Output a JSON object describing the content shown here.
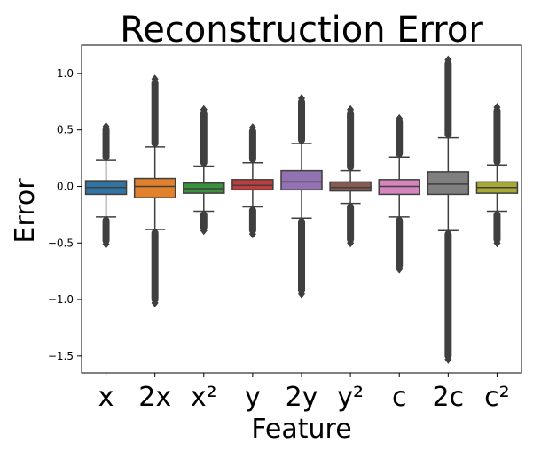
{
  "chart_data": {
    "type": "box",
    "title": "Reconstruction Error",
    "xlabel": "Feature",
    "ylabel": "Error",
    "ylim": [
      -1.65,
      1.25
    ],
    "yticks": [
      1.0,
      0.5,
      0.0,
      -0.5,
      -1.0,
      -1.5
    ],
    "ytick_labels": [
      "1.0",
      "0.5",
      "0.0",
      "−0.5",
      "−1.0",
      "−1.5"
    ],
    "grid": false,
    "categories": [
      "x",
      "2x",
      "x²",
      "y",
      "2y",
      "y²",
      "c",
      "2c",
      "c²"
    ],
    "boxes": [
      {
        "category": "x",
        "color": "#3274a1",
        "q1": -0.07,
        "median": -0.01,
        "q3": 0.05,
        "whisker_low": -0.27,
        "whisker_high": 0.23,
        "outlier_min": -0.51,
        "outlier_max": 0.53
      },
      {
        "category": "2x",
        "color": "#e1812c",
        "q1": -0.1,
        "median": 0.0,
        "q3": 0.07,
        "whisker_low": -0.38,
        "whisker_high": 0.35,
        "outlier_min": -1.03,
        "outlier_max": 0.95
      },
      {
        "category": "x²",
        "color": "#3a923a",
        "q1": -0.06,
        "median": -0.02,
        "q3": 0.03,
        "whisker_low": -0.22,
        "whisker_high": 0.18,
        "outlier_min": -0.39,
        "outlier_max": 0.68
      },
      {
        "category": "y",
        "color": "#c03d3e",
        "q1": -0.03,
        "median": 0.01,
        "q3": 0.06,
        "whisker_low": -0.18,
        "whisker_high": 0.21,
        "outlier_min": -0.42,
        "outlier_max": 0.52
      },
      {
        "category": "2y",
        "color": "#9372b2",
        "q1": -0.03,
        "median": 0.04,
        "q3": 0.14,
        "whisker_low": -0.28,
        "whisker_high": 0.38,
        "outlier_min": -0.95,
        "outlier_max": 0.78
      },
      {
        "category": "y²",
        "color": "#845b53",
        "q1": -0.04,
        "median": -0.01,
        "q3": 0.04,
        "whisker_low": -0.15,
        "whisker_high": 0.14,
        "outlier_min": -0.5,
        "outlier_max": 0.68
      },
      {
        "category": "c",
        "color": "#d684bd",
        "q1": -0.07,
        "median": 0.0,
        "q3": 0.06,
        "whisker_low": -0.27,
        "whisker_high": 0.26,
        "outlier_min": -0.73,
        "outlier_max": 0.6
      },
      {
        "category": "2c",
        "color": "#7f7f7f",
        "q1": -0.07,
        "median": 0.02,
        "q3": 0.13,
        "whisker_low": -0.39,
        "whisker_high": 0.43,
        "outlier_min": -1.53,
        "outlier_max": 1.12
      },
      {
        "category": "c²",
        "color": "#a9aa35",
        "q1": -0.06,
        "median": -0.01,
        "q3": 0.04,
        "whisker_low": -0.22,
        "whisker_high": 0.19,
        "outlier_min": -0.5,
        "outlier_max": 0.7
      }
    ]
  }
}
